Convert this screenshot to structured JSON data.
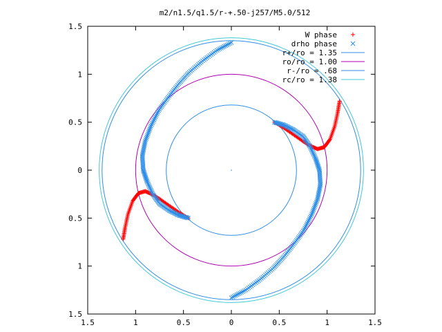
{
  "chart_data": {
    "type": "scatter",
    "title": "m2/n1.5/q1.5/r-+.50-j257/M5.0/512",
    "xlim": [
      -1.5,
      1.5
    ],
    "ylim": [
      -1.5,
      1.5
    ],
    "x_ticks": [
      -1.5,
      -1,
      -0.5,
      0,
      0.5,
      1,
      1.5
    ],
    "y_ticks": [
      -1.5,
      -1,
      -0.5,
      0,
      0.5,
      1,
      1.5
    ],
    "x_tick_labels": [
      "1.5",
      "1",
      "0.5",
      "0",
      "0.5",
      "1",
      "1.5"
    ],
    "y_tick_labels": [
      "1.5",
      "1",
      "0.5",
      "0",
      "0.5",
      "1",
      "1.5"
    ],
    "grid": false,
    "legend_position": "top-right",
    "series": [
      {
        "name": "W phase",
        "marker": "plus",
        "color": "#ff0000",
        "x": [
          0.45,
          0.55,
          0.65,
          0.75,
          0.83,
          0.9,
          0.97,
          1.03,
          1.08,
          1.11,
          1.13,
          -0.45,
          -0.55,
          -0.65,
          -0.75,
          -0.83,
          -0.9,
          -0.97,
          -1.03,
          -1.08,
          -1.11,
          -1.13
        ],
        "y": [
          0.5,
          0.44,
          0.37,
          0.3,
          0.25,
          0.22,
          0.24,
          0.32,
          0.46,
          0.6,
          0.72,
          -0.5,
          -0.44,
          -0.37,
          -0.3,
          -0.25,
          -0.22,
          -0.24,
          -0.32,
          -0.46,
          -0.6,
          -0.72
        ]
      },
      {
        "name": "drho phase",
        "marker": "cross",
        "color": "#2f8ee8",
        "x": [
          0.45,
          0.55,
          0.65,
          0.75,
          0.82,
          0.88,
          0.92,
          0.93,
          0.9,
          0.84,
          0.76,
          0.66,
          0.55,
          0.44,
          0.3,
          0.15,
          0.0,
          -0.45,
          -0.55,
          -0.65,
          -0.75,
          -0.82,
          -0.88,
          -0.92,
          -0.93,
          -0.9,
          -0.84,
          -0.76,
          -0.66,
          -0.55,
          -0.44,
          -0.3,
          -0.15,
          0.0
        ],
        "y": [
          0.5,
          0.47,
          0.42,
          0.35,
          0.25,
          0.12,
          0.0,
          -0.15,
          -0.3,
          -0.46,
          -0.62,
          -0.76,
          -0.9,
          -1.02,
          -1.14,
          -1.25,
          -1.33,
          -0.5,
          -0.47,
          -0.42,
          -0.35,
          -0.25,
          -0.12,
          0.0,
          0.15,
          0.3,
          0.46,
          0.62,
          0.76,
          0.9,
          1.02,
          1.14,
          1.25,
          1.33
        ]
      },
      {
        "name": "r+/ro = 1.35",
        "type": "circle",
        "radius": 1.35,
        "color": "#2f8ee8"
      },
      {
        "name": "ro/ro = 1.00",
        "type": "circle",
        "radius": 1.0,
        "color": "#b000b0"
      },
      {
        "name": "r-/ro = .68",
        "type": "circle",
        "radius": 0.68,
        "color": "#2f8ee8"
      },
      {
        "name": "rc/ro = 1.38",
        "type": "circle",
        "radius": 1.38,
        "color": "#40c8d8"
      }
    ]
  }
}
